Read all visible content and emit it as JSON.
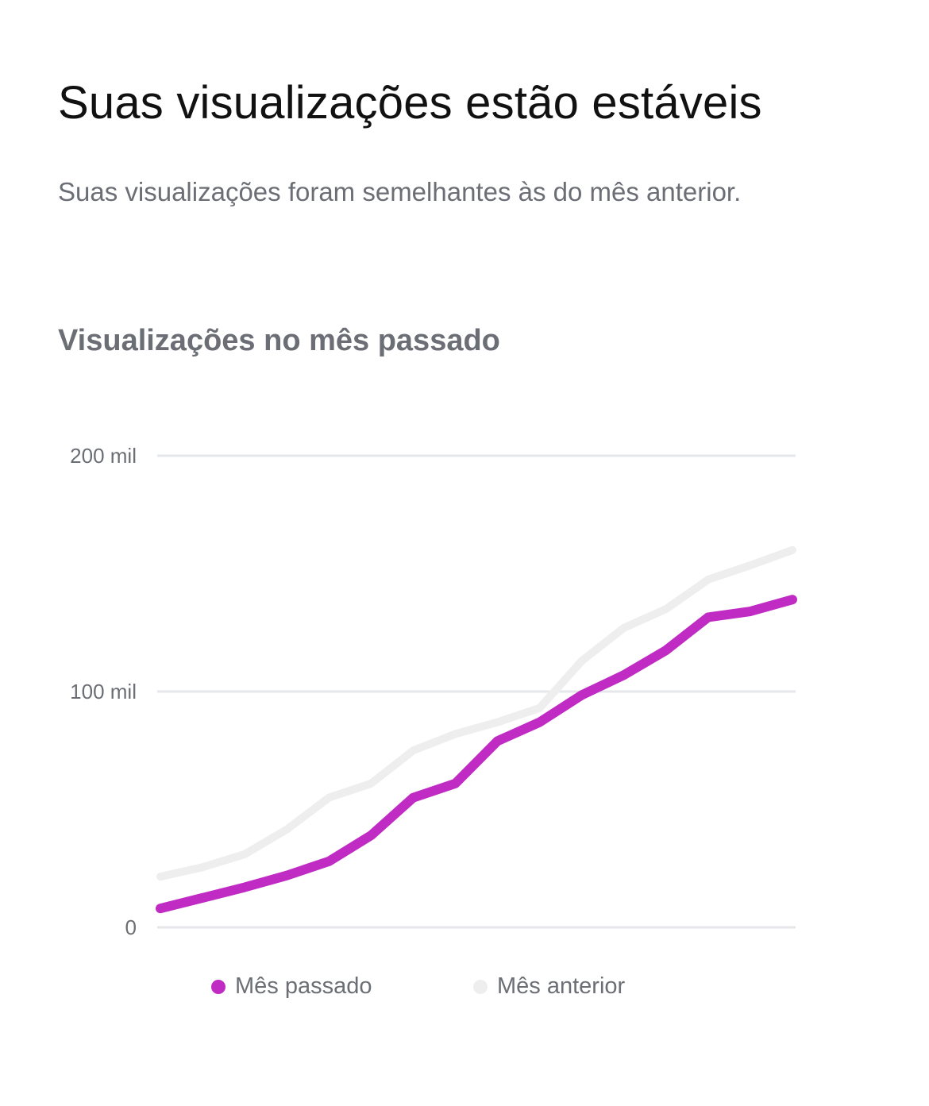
{
  "header": {
    "title": "Suas visualizações estão estáveis",
    "subtitle": "Suas visualizações foram semelhantes às do mês anterior."
  },
  "chart_data": {
    "type": "line",
    "title": "Visualizações no mês passado",
    "xlabel": "",
    "ylabel": "",
    "ylim": [
      0,
      200000
    ],
    "yticks": [
      {
        "value": 0,
        "label": "0"
      },
      {
        "value": 100000,
        "label": "100 mil"
      },
      {
        "value": 200000,
        "label": "200 mil"
      }
    ],
    "grid": true,
    "legend_position": "bottom",
    "x": [
      1,
      2,
      3,
      4,
      5,
      6,
      7,
      8,
      9,
      10,
      11,
      12,
      13,
      14,
      15,
      16
    ],
    "series": [
      {
        "name": "Mês passado",
        "color": "#c02bc4",
        "values": [
          8000,
          12500,
          17000,
          22000,
          28000,
          39000,
          55000,
          61000,
          79000,
          87000,
          98500,
          107000,
          117500,
          131500,
          134000,
          139000
        ]
      },
      {
        "name": "Mês anterior",
        "color": "#eeeeee",
        "values": [
          21500,
          25500,
          31000,
          41500,
          55000,
          61000,
          75000,
          82000,
          87000,
          93000,
          113000,
          127000,
          135000,
          147500,
          153500,
          160000
        ]
      }
    ]
  }
}
